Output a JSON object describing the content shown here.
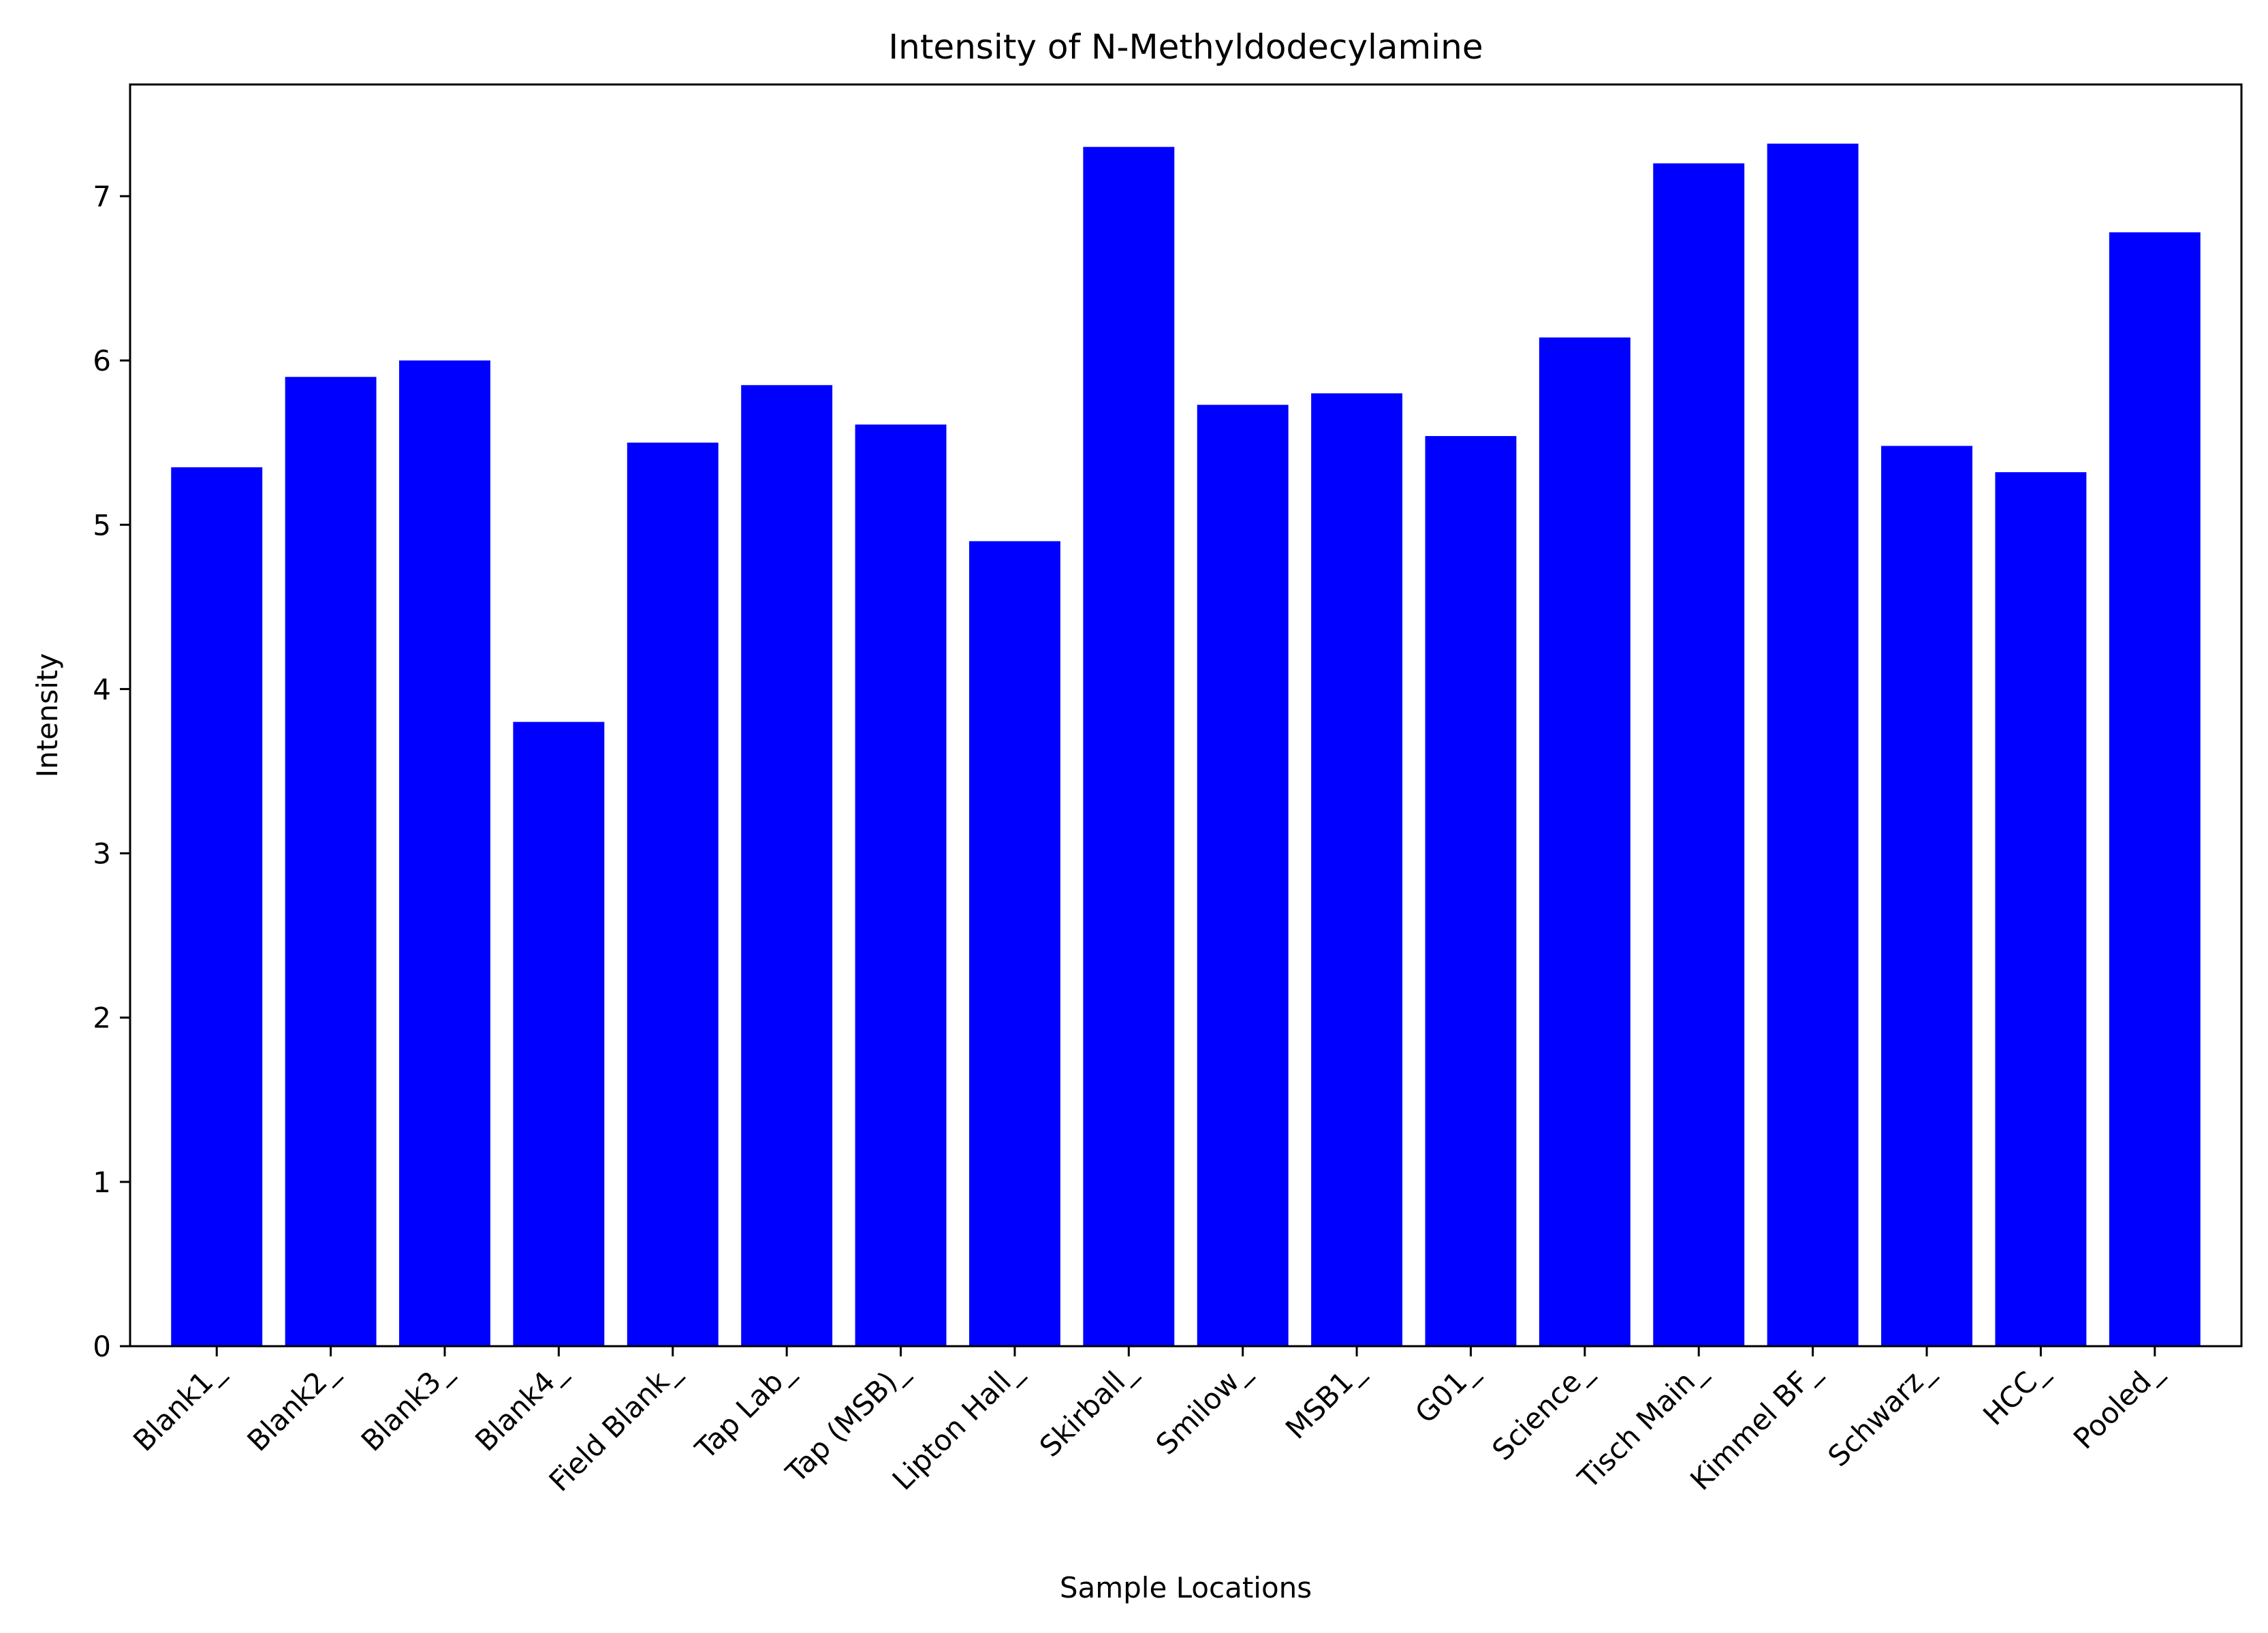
{
  "chart_data": {
    "type": "bar",
    "title": "Intensity of N-Methyldodecylamine",
    "xlabel": "Sample Locations",
    "ylabel": "Intensity",
    "categories": [
      "Blank1_",
      "Blank2_",
      "Blank3_",
      "Blank4_",
      "Field Blank_",
      "Tap Lab_",
      "Tap (MSB)_",
      "Lipton Hall_",
      "Skirball_",
      "Smilow_",
      "MSB1_",
      "G01_",
      "Science_",
      "Tisch Main_",
      "Kimmel BF_",
      "Schwarz_",
      "HCC_",
      "Pooled_"
    ],
    "values": [
      5.35,
      5.9,
      6.0,
      3.8,
      5.5,
      5.85,
      5.61,
      4.9,
      7.3,
      5.73,
      5.8,
      5.54,
      6.14,
      7.2,
      7.32,
      5.48,
      5.32,
      6.78
    ],
    "yticks": [
      0,
      1,
      2,
      3,
      4,
      5,
      6,
      7
    ],
    "ylim": [
      0,
      7.68
    ],
    "grid": false,
    "bar_color": "#0000ff"
  }
}
